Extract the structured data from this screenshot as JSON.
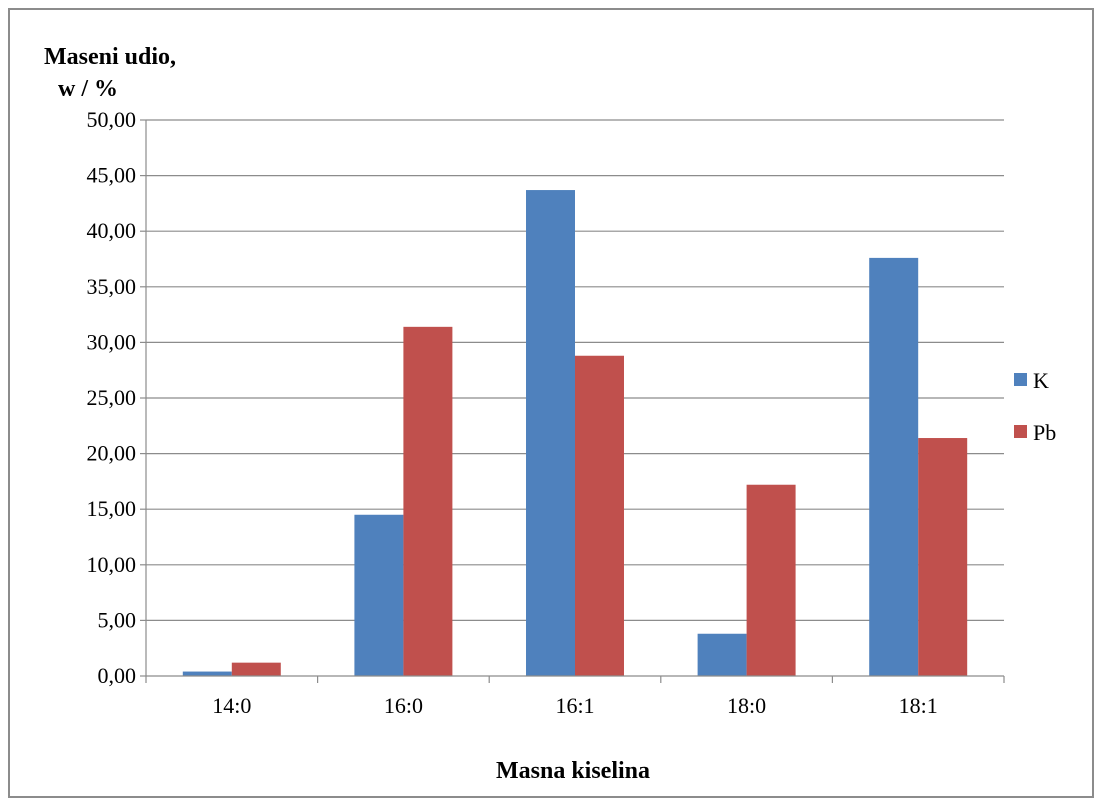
{
  "chart_data": {
    "type": "bar",
    "title": "",
    "ylabel_line1": "Maseni udio,",
    "ylabel_line2": "w / %",
    "xlabel": "Masna kiselina",
    "categories": [
      "14:0",
      "16:0",
      "16:1",
      "18:0",
      "18:1"
    ],
    "series": [
      {
        "name": "K",
        "values": [
          0.4,
          14.5,
          43.7,
          3.8,
          37.6
        ],
        "color": "#4f81bd"
      },
      {
        "name": "Pb",
        "values": [
          1.2,
          31.4,
          28.8,
          17.2,
          21.4
        ],
        "color": "#c0504d"
      }
    ],
    "ylim": [
      0,
      50
    ],
    "yticks": [
      "0,00",
      "5,00",
      "10,00",
      "15,00",
      "20,00",
      "25,00",
      "30,00",
      "35,00",
      "40,00",
      "45,00",
      "50,00"
    ],
    "grid": true,
    "legend_position": "right"
  }
}
